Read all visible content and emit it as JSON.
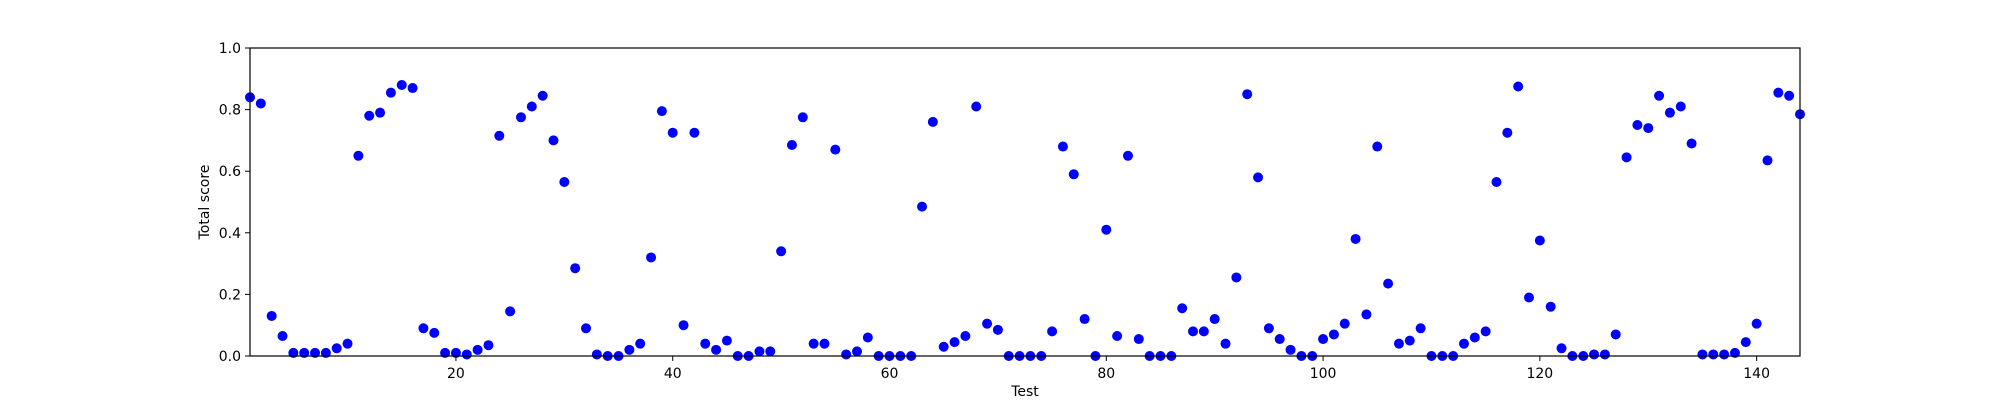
{
  "chart_data": {
    "type": "scatter",
    "title": "",
    "xlabel": "Test",
    "ylabel": "Total score",
    "xlim": [
      1,
      144
    ],
    "ylim": [
      0,
      1.0
    ],
    "xticks": [
      20,
      40,
      60,
      80,
      100,
      120,
      140
    ],
    "xtick_labels": [
      "20",
      "40",
      "60",
      "80",
      "100",
      "120",
      "140"
    ],
    "yticks": [
      0.0,
      0.2,
      0.4,
      0.6,
      0.8,
      1.0
    ],
    "ytick_labels": [
      "0.0",
      "0.2",
      "0.4",
      "0.6",
      "0.8",
      "1.0"
    ],
    "grid": false,
    "marker_color": "#0000ff",
    "series": [
      {
        "x": [
          1,
          2,
          3,
          4,
          5,
          6,
          7,
          8,
          9,
          10,
          11,
          12,
          13,
          14,
          15,
          16,
          17,
          18,
          19,
          20,
          21,
          22,
          23,
          24,
          25,
          26,
          27,
          28,
          29,
          30,
          31,
          32,
          33,
          34,
          35,
          36,
          37,
          38,
          39,
          40,
          41,
          42,
          43,
          44,
          45,
          46,
          47,
          48,
          49,
          50,
          51,
          52,
          53,
          54,
          55,
          56,
          57,
          58,
          59,
          60,
          61,
          62,
          63,
          64,
          65,
          66,
          67,
          68,
          69,
          70,
          71,
          72,
          73,
          74,
          75,
          76,
          77,
          78,
          79,
          80,
          81,
          82,
          83,
          84,
          85,
          86,
          87,
          88,
          89,
          90,
          91,
          92,
          93,
          94,
          95,
          96,
          97,
          98,
          99,
          100,
          101,
          102,
          103,
          104,
          105,
          106,
          107,
          108,
          109,
          110,
          111,
          112,
          113,
          114,
          115,
          116,
          117,
          118,
          119,
          120,
          121,
          122,
          123,
          124,
          125,
          126,
          127,
          128,
          129,
          130,
          131,
          132,
          133,
          134,
          135,
          136,
          137,
          138,
          139,
          140,
          141,
          142,
          143,
          144
        ],
        "y": [
          0.84,
          0.82,
          0.13,
          0.065,
          0.01,
          0.01,
          0.01,
          0.01,
          0.025,
          0.04,
          0.65,
          0.78,
          0.79,
          0.855,
          0.88,
          0.87,
          0.09,
          0.075,
          0.01,
          0.01,
          0.005,
          0.02,
          0.035,
          0.715,
          0.145,
          0.775,
          0.81,
          0.845,
          0.7,
          0.565,
          0.285,
          0.09,
          0.005,
          0.0,
          0.0,
          0.02,
          0.04,
          0.32,
          0.795,
          0.725,
          0.1,
          0.725,
          0.04,
          0.02,
          0.05,
          0.0,
          0.0,
          0.015,
          0.015,
          0.34,
          0.685,
          0.775,
          0.04,
          0.04,
          0.67,
          0.005,
          0.015,
          0.06,
          0.0,
          0.0,
          0.0,
          0.0,
          0.485,
          0.76,
          0.03,
          0.045,
          0.065,
          0.81,
          0.105,
          0.085,
          0.0,
          0.0,
          0.0,
          0.0,
          0.08,
          0.68,
          0.59,
          0.12,
          0.0,
          0.41,
          0.065,
          0.65,
          0.055,
          0.0,
          0.0,
          0.0,
          0.155,
          0.08,
          0.08,
          0.12,
          0.04,
          0.255,
          0.85,
          0.58,
          0.09,
          0.055,
          0.02,
          0.0,
          0.0,
          0.055,
          0.07,
          0.105,
          0.38,
          0.135,
          0.68,
          0.235,
          0.04,
          0.05,
          0.09,
          0.0,
          0.0,
          0.0,
          0.04,
          0.06,
          0.08,
          0.565,
          0.725,
          0.875,
          0.19,
          0.375,
          0.16,
          0.025,
          0.0,
          0.0,
          0.005,
          0.005,
          0.07,
          0.645,
          0.75,
          0.74,
          0.845,
          0.79,
          0.81,
          0.69,
          0.005,
          0.005,
          0.005,
          0.01,
          0.045,
          0.105,
          0.635,
          0.855,
          0.845,
          0.785
        ]
      }
    ]
  }
}
